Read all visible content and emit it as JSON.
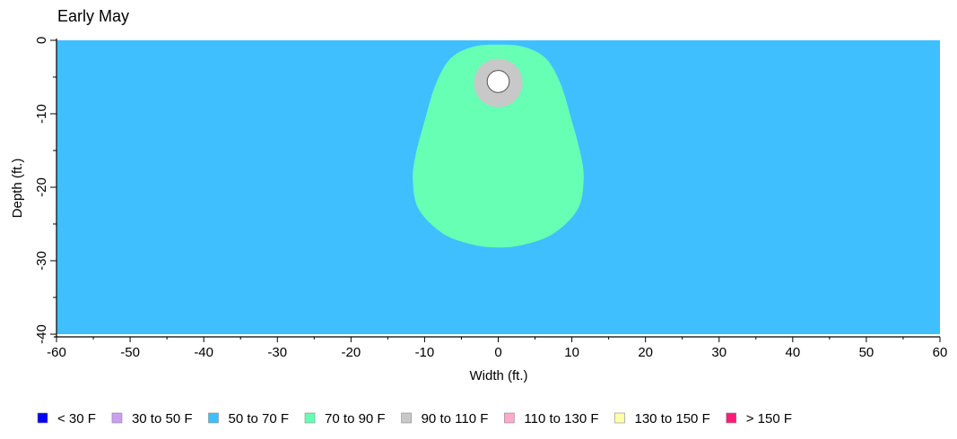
{
  "chart_data": {
    "type": "heatmap",
    "title": "Early May",
    "xlabel": "Width (ft.)",
    "ylabel": "Depth (ft.)",
    "xlim": [
      -60,
      60
    ],
    "ylim": [
      0,
      -40
    ],
    "x_ticks": [
      -60,
      -50,
      -40,
      -30,
      -20,
      -10,
      0,
      10,
      20,
      30,
      40,
      50,
      60
    ],
    "y_ticks": [
      0,
      -10,
      -20,
      -30,
      -40
    ],
    "grid": false,
    "legend_position": "bottom",
    "legend": [
      {
        "label": "< 30 F",
        "color": "#0000ff"
      },
      {
        "label": "30 to 50 F",
        "color": "#c8a0f0"
      },
      {
        "label": "50 to 70 F",
        "color": "#40bfff"
      },
      {
        "label": "70 to 90 F",
        "color": "#66ffb3"
      },
      {
        "label": "90 to 110 F",
        "color": "#c8c8c8"
      },
      {
        "label": "110 to 130 F",
        "color": "#ffaacc"
      },
      {
        "label": "130 to 150 F",
        "color": "#ffffaa"
      },
      {
        "label": "> 150 F",
        "color": "#ff1a75"
      }
    ],
    "regions": [
      {
        "band": "50 to 70 F",
        "shape": "background",
        "color": "#40bfff"
      },
      {
        "band": "70 to 90 F",
        "shape": "outline",
        "color": "#66ffb3",
        "outline": [
          [
            0,
            -0.6
          ],
          [
            3.5,
            -0.9
          ],
          [
            6.5,
            -2.5
          ],
          [
            8.5,
            -6
          ],
          [
            10,
            -11
          ],
          [
            11.2,
            -15.5
          ],
          [
            11.6,
            -19
          ],
          [
            10.8,
            -23
          ],
          [
            7.5,
            -26.3
          ],
          [
            3.5,
            -27.8
          ],
          [
            0,
            -28.2
          ],
          [
            -3.5,
            -27.8
          ],
          [
            -7.5,
            -26.3
          ],
          [
            -10.8,
            -23
          ],
          [
            -11.6,
            -19
          ],
          [
            -11.2,
            -15.5
          ],
          [
            -10,
            -11
          ],
          [
            -8.5,
            -6
          ],
          [
            -6.5,
            -2.5
          ],
          [
            -3.5,
            -0.9
          ]
        ]
      },
      {
        "band": "90 to 110 F",
        "shape": "circle",
        "color": "#c8c8c8",
        "center": [
          0,
          -5.8
        ],
        "radius": 3.3
      },
      {
        "band": "pipe",
        "shape": "circle",
        "color": "#ffffff",
        "center": [
          0,
          -5.6
        ],
        "radius": 1.5
      }
    ]
  }
}
